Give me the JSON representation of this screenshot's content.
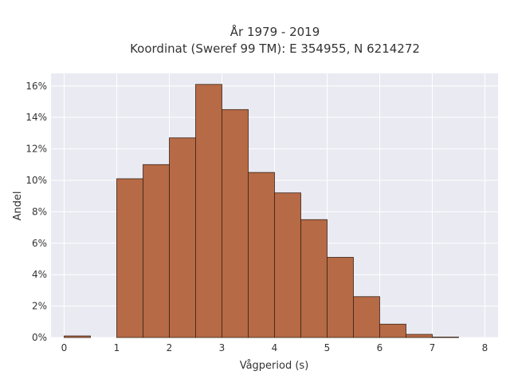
{
  "chart_data": {
    "type": "bar",
    "title_lines": [
      "År 1979 - 2019",
      "Koordinat (Sweref 99 TM): E 354955, N 6214272"
    ],
    "xlabel": "Vågperiod (s)",
    "ylabel": "Andel",
    "xlim": [
      -0.25,
      8.25
    ],
    "ylim": [
      0,
      16.8
    ],
    "x_ticks": [
      0,
      1,
      2,
      3,
      4,
      5,
      6,
      7,
      8
    ],
    "x_tick_labels": [
      "0",
      "1",
      "2",
      "3",
      "4",
      "5",
      "6",
      "7",
      "8"
    ],
    "y_ticks": [
      0,
      2,
      4,
      6,
      8,
      10,
      12,
      14,
      16
    ],
    "y_tick_labels": [
      "0%",
      "2%",
      "4%",
      "6%",
      "8%",
      "10%",
      "12%",
      "14%",
      "16%"
    ],
    "bin_width": 0.5,
    "bins": [
      {
        "x0": 0.0,
        "x1": 0.5,
        "value": 0.1
      },
      {
        "x0": 1.0,
        "x1": 1.5,
        "value": 10.1
      },
      {
        "x0": 1.5,
        "x1": 2.0,
        "value": 11.0
      },
      {
        "x0": 2.0,
        "x1": 2.5,
        "value": 12.7
      },
      {
        "x0": 2.5,
        "x1": 3.0,
        "value": 16.1
      },
      {
        "x0": 3.0,
        "x1": 3.5,
        "value": 14.5
      },
      {
        "x0": 3.5,
        "x1": 4.0,
        "value": 10.5
      },
      {
        "x0": 4.0,
        "x1": 4.5,
        "value": 9.2
      },
      {
        "x0": 4.5,
        "x1": 5.0,
        "value": 7.5
      },
      {
        "x0": 5.0,
        "x1": 5.5,
        "value": 5.1
      },
      {
        "x0": 5.5,
        "x1": 6.0,
        "value": 2.6
      },
      {
        "x0": 6.0,
        "x1": 6.5,
        "value": 0.85
      },
      {
        "x0": 6.5,
        "x1": 7.0,
        "value": 0.2
      },
      {
        "x0": 7.0,
        "x1": 7.5,
        "value": 0.03
      }
    ],
    "bar_color": "#b66a45",
    "bar_edge_color": "#3b2418",
    "plot_background": "#eaeaf2",
    "grid": true,
    "grid_color": "#ffffff",
    "legend": "none"
  }
}
